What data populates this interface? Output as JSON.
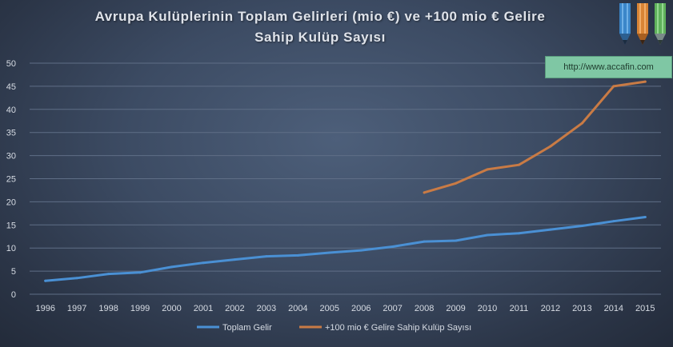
{
  "title_line1": "Avrupa  Kulüplerinin  Toplam  Gelirleri  (mio €) ve +100 mio € Gelire",
  "title_line2": "Sahip  Kulüp  Sayısı",
  "url_label": "http://www.accafin.com",
  "colors": {
    "series1": "#4a90d4",
    "series2": "#c97b45",
    "grid": "#5f6e86",
    "axis_text": "#d6dbe3"
  },
  "chart_data": {
    "type": "line",
    "title": "Avrupa  Kulüplerinin  Toplam  Gelirleri  (mio €) ve +100 mio € Gelire Sahip  Kulüp  Sayısı",
    "xlabel": "",
    "ylabel": "",
    "ylim": [
      0,
      50
    ],
    "yticks": [
      "0",
      "5",
      "10",
      "15",
      "20",
      "25",
      "30",
      "35",
      "40",
      "45",
      "50"
    ],
    "grid": true,
    "legend_position": "bottom",
    "categories": [
      "1996",
      "1997",
      "1998",
      "1999",
      "2000",
      "2001",
      "2002",
      "2003",
      "2004",
      "2005",
      "2006",
      "2007",
      "2008",
      "2009",
      "2010",
      "2011",
      "2012",
      "2013",
      "2014",
      "2015"
    ],
    "series": [
      {
        "name": "Toplam Gelir",
        "values": [
          2.9,
          3.5,
          4.4,
          4.7,
          5.9,
          6.8,
          7.5,
          8.2,
          8.4,
          9.0,
          9.5,
          10.3,
          11.4,
          11.6,
          12.8,
          13.2,
          14.0,
          14.8,
          15.8,
          16.7
        ]
      },
      {
        "name": "+100 mio € Gelire Sahip Kulüp Sayısı",
        "values": [
          null,
          null,
          null,
          null,
          null,
          null,
          null,
          null,
          null,
          null,
          null,
          null,
          22,
          24,
          27,
          28,
          32,
          37,
          45,
          46
        ]
      }
    ]
  }
}
